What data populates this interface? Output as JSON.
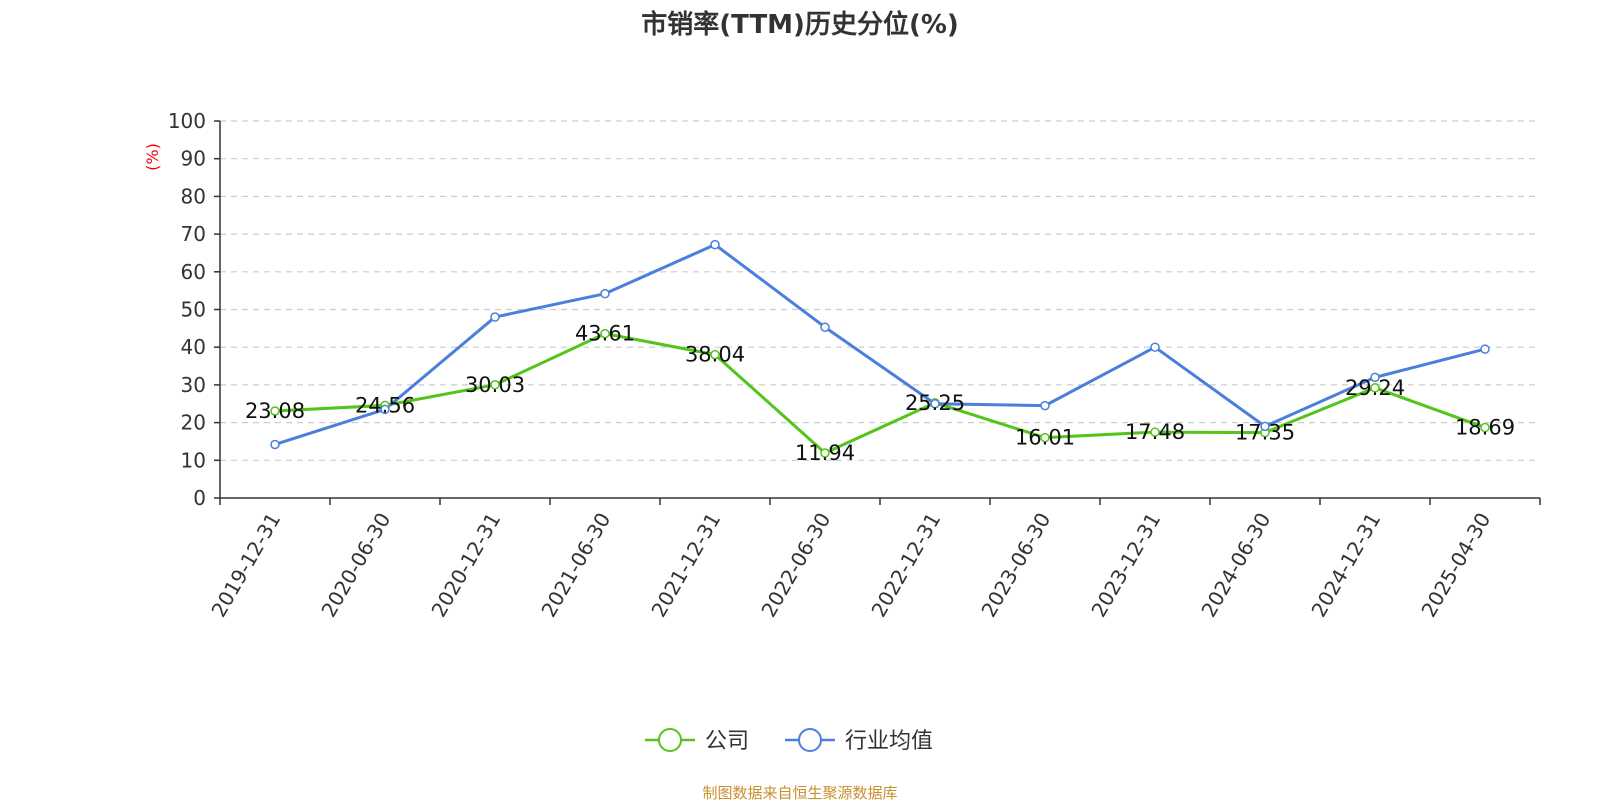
{
  "chart_data": {
    "type": "line",
    "title": "市销率(TTM)历史分位(%)",
    "ylabel": "(%)",
    "xlabel": "",
    "ylim": [
      0,
      100
    ],
    "yticks": [
      0,
      10,
      20,
      30,
      40,
      50,
      60,
      70,
      80,
      90,
      100
    ],
    "grid": true,
    "legend_position": "bottom-center",
    "categories": [
      "2019-12-31",
      "2020-06-30",
      "2020-12-31",
      "2021-06-30",
      "2021-12-31",
      "2022-06-30",
      "2022-12-31",
      "2023-06-30",
      "2023-12-31",
      "2024-06-30",
      "2024-12-31",
      "2025-04-30"
    ],
    "series": [
      {
        "name": "公司",
        "color": "#52c41a",
        "show_labels": true,
        "values": [
          23.08,
          24.56,
          30.03,
          43.61,
          38.04,
          11.94,
          25.25,
          16.01,
          17.48,
          17.35,
          29.24,
          18.69
        ]
      },
      {
        "name": "行业均值",
        "color": "#4a7fdb",
        "show_labels": false,
        "values": [
          14.2,
          23.5,
          48.0,
          54.2,
          67.2,
          45.3,
          25.0,
          24.5,
          40.0,
          19.0,
          32.0,
          39.5
        ]
      }
    ]
  },
  "footer": {
    "source": "制图数据来自恒生聚源数据库"
  },
  "colors": {
    "title": "#333333",
    "axis": "#333333",
    "grid": "#cccccc",
    "ylabel": "#ff0000",
    "source": "#c8902e"
  }
}
